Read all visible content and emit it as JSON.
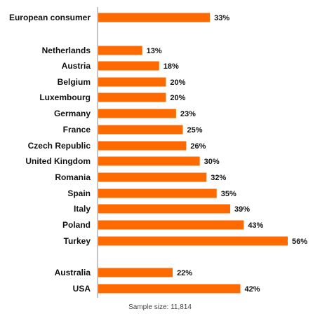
{
  "chart_data": {
    "type": "bar",
    "orientation": "horizontal",
    "categories": [
      "European consumer",
      "Netherlands",
      "Austria",
      "Belgium",
      "Luxembourg",
      "Germany",
      "France",
      "Czech Republic",
      "United Kingdom",
      "Romania",
      "Spain",
      "Italy",
      "Poland",
      "Turkey",
      "Australia",
      "USA"
    ],
    "values": [
      33,
      13,
      18,
      20,
      20,
      23,
      25,
      26,
      30,
      32,
      35,
      39,
      43,
      56,
      22,
      42
    ],
    "value_labels": [
      "33%",
      "13%",
      "18%",
      "20%",
      "20%",
      "23%",
      "25%",
      "26%",
      "30%",
      "32%",
      "35%",
      "39%",
      "43%",
      "56%",
      "22%",
      "42%"
    ],
    "xlim": [
      0,
      56
    ],
    "grid": false,
    "bar_color": "#ff6a00"
  },
  "footnote": "Sample size: 11,814"
}
